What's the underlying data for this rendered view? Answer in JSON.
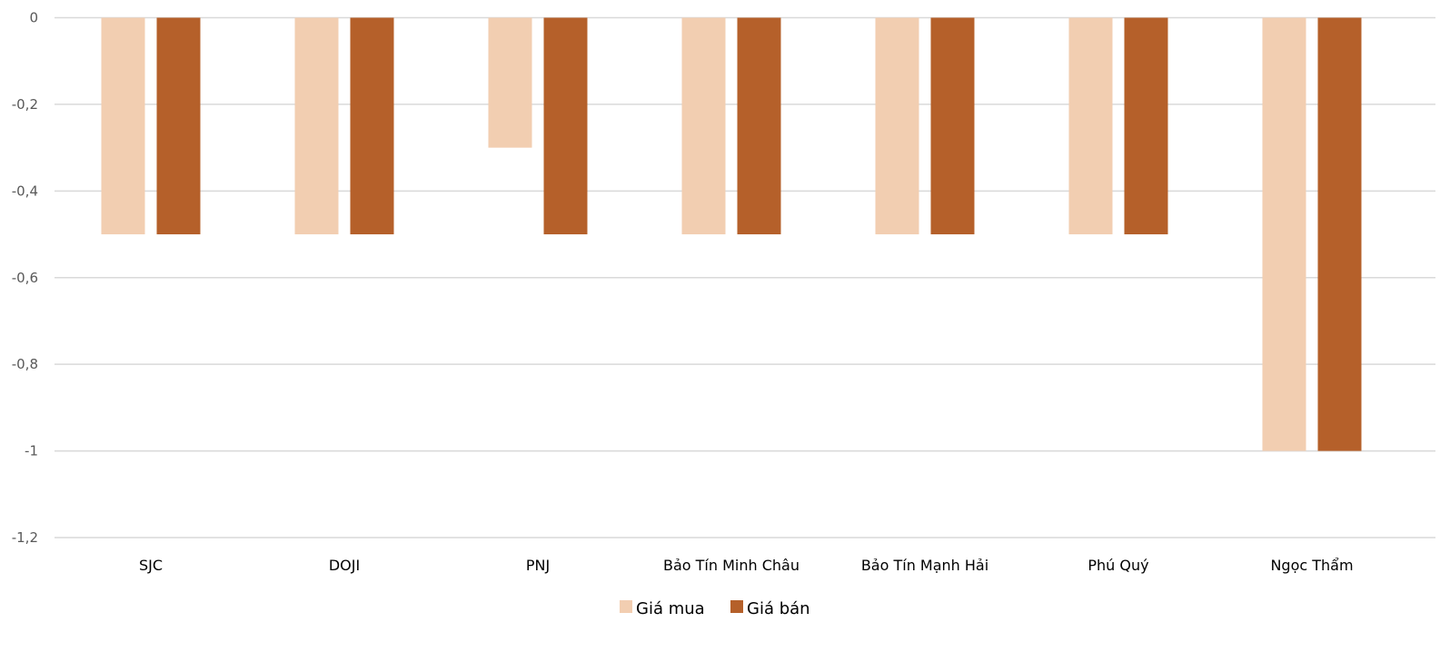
{
  "chart_data": {
    "type": "bar",
    "categories": [
      "SJC",
      "DOJI",
      "PNJ",
      "Bảo Tín Minh Châu",
      "Bảo Tín Mạnh Hải",
      "Phú Quý",
      "Ngọc Thẩm"
    ],
    "series": [
      {
        "name": "Giá mua",
        "color": "#F2CEB1",
        "values": [
          -0.5,
          -0.5,
          -0.3,
          -0.5,
          -0.5,
          -0.5,
          -1
        ]
      },
      {
        "name": "Giá bán",
        "color": "#B5602A",
        "values": [
          -0.5,
          -0.5,
          -0.5,
          -0.5,
          -0.5,
          -0.5,
          -1
        ]
      }
    ],
    "ylim": [
      -1.2,
      0
    ],
    "yticks": [
      "0",
      "-0,2",
      "-0,4",
      "-0,6",
      "-0,8",
      "-1",
      "-1,2"
    ],
    "ytick_values": [
      0,
      -0.2,
      -0.4,
      -0.6,
      -0.8,
      -1,
      -1.2
    ],
    "grid": true,
    "legend": "bottom"
  }
}
